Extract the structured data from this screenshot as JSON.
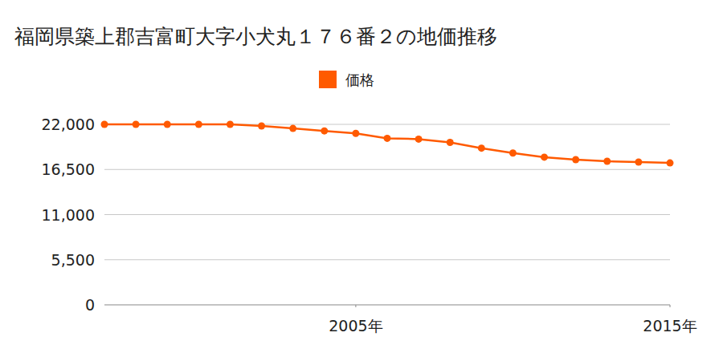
{
  "chart_data": {
    "type": "line",
    "title": "福岡県築上郡吉富町大字小犬丸１７６番２の地価推移",
    "x": [
      1997,
      1998,
      1999,
      2000,
      2001,
      2002,
      2003,
      2004,
      2005,
      2006,
      2007,
      2008,
      2009,
      2010,
      2011,
      2012,
      2013,
      2014,
      2015
    ],
    "series": [
      {
        "name": "価格",
        "color": "#ff5a00",
        "marker": "circle",
        "values": [
          22000,
          22000,
          22000,
          22000,
          22000,
          21800,
          21500,
          21200,
          20900,
          20300,
          20200,
          19800,
          19100,
          18500,
          18000,
          17700,
          17500,
          17400,
          17300
        ]
      }
    ],
    "xlim": [
      1997,
      2015
    ],
    "xticks": [
      {
        "value": 2005,
        "label": "2005年"
      },
      {
        "value": 2015,
        "label": "2015年"
      }
    ],
    "ylim": [
      0,
      22000
    ],
    "yticks": [
      0,
      {
        "value": 5500,
        "label": "5,500"
      },
      {
        "value": 11000,
        "label": "11,000"
      },
      {
        "value": 16500,
        "label": "16,500"
      },
      {
        "value": 22000,
        "label": "22,000"
      }
    ],
    "grid": true,
    "legend": "top"
  }
}
